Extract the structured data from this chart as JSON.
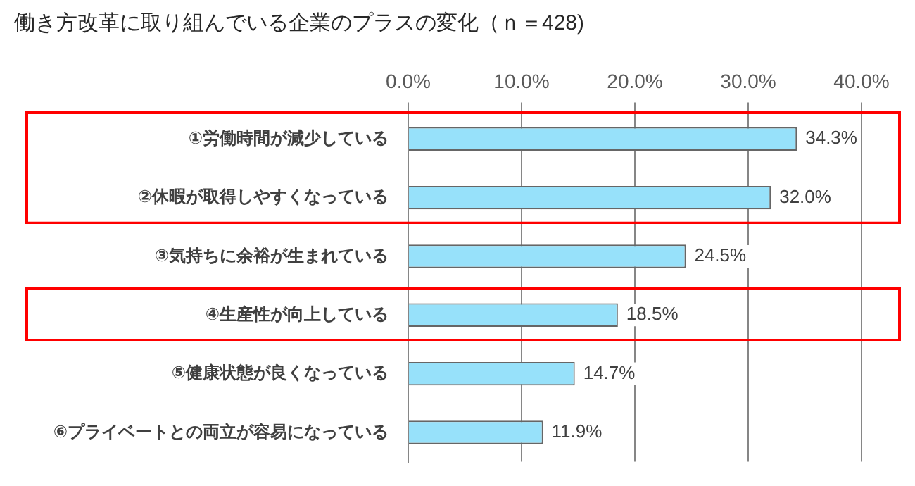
{
  "chart_data": {
    "type": "bar",
    "orientation": "horizontal",
    "title": "働き方改革に取り組んでいる企業のプラスの変化（ｎ＝428)",
    "categories": [
      "①労働時間が減少している",
      "②休暇が取得しやすくなっている",
      "③気持ちに余裕が生まれている",
      "④生産性が向上している",
      "⑤健康状態が良くなっている",
      "⑥プライベートとの両立が容易になっている"
    ],
    "values": [
      34.3,
      32.0,
      24.5,
      18.5,
      14.7,
      11.9
    ],
    "value_labels": [
      "34.3%",
      "32.0%",
      "24.5%",
      "18.5%",
      "14.7%",
      "11.9%"
    ],
    "color": "#97e1fa",
    "xlim": [
      0,
      40
    ],
    "xticks": [
      {
        "value": 0,
        "label": "0.0%"
      },
      {
        "value": 10,
        "label": "10.0%"
      },
      {
        "value": 20,
        "label": "20.0%"
      },
      {
        "value": 30,
        "label": "30.0%"
      },
      {
        "value": 40,
        "label": "40.0%"
      }
    ],
    "grid": "x",
    "legend": false
  }
}
